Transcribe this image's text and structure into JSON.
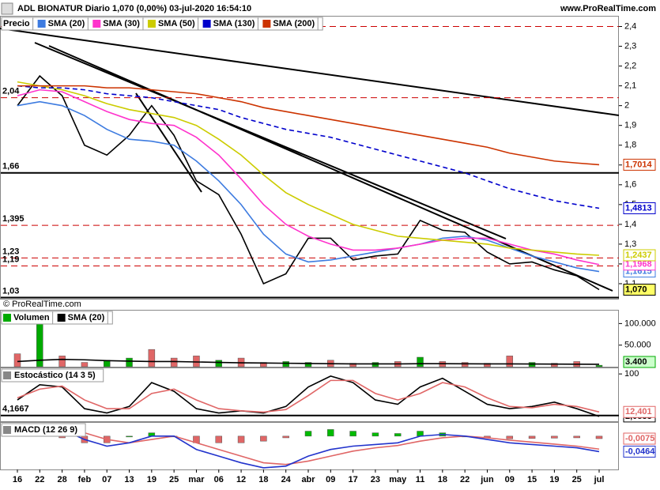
{
  "header": {
    "title": "ADL BIONATUR Diario 1,070 (0,00%) 03-jul-2020 16:54:10",
    "site": "www.ProRealTime.com",
    "copyright": "© ProRealTime.com"
  },
  "chart_data": [
    {
      "type": "line",
      "categories": [
        "16",
        "22",
        "28",
        "feb",
        "07",
        "13",
        "19",
        "25",
        "mar",
        "06",
        "12",
        "18",
        "24",
        "abr",
        "09",
        "17",
        "23",
        "may",
        "11",
        "18",
        "22",
        "jun",
        "09",
        "15",
        "19",
        "25",
        "jul"
      ],
      "ylim": [
        1.024,
        2.45
      ],
      "yticks": [
        {
          "value": 2.4,
          "label": "2,4"
        },
        {
          "value": 2.3,
          "label": "2,3"
        },
        {
          "value": 2.2,
          "label": "2,2"
        },
        {
          "value": 2.1,
          "label": "2,1"
        },
        2,
        {
          "value": 1.9,
          "label": "1,9"
        },
        {
          "value": 1.8,
          "label": "1,8"
        },
        {
          "value": 1.7,
          "label": "1,7"
        },
        {
          "value": 1.6,
          "label": "1,6"
        },
        {
          "value": 1.5,
          "label": "1,5"
        },
        {
          "value": 1.4,
          "label": "1,4"
        },
        {
          "value": 1.3,
          "label": "1,3"
        },
        {
          "value": 1.2,
          "label": "1,2"
        },
        {
          "value": 1.1,
          "label": "1,1"
        }
      ],
      "levels": [
        {
          "value": 2.4,
          "label": null,
          "color": "#cc0000",
          "dashed": true
        },
        {
          "value": 2.04,
          "label": "2,04",
          "color": "#cc0000",
          "dashed": true
        },
        {
          "value": 1.66,
          "label": "1,66",
          "color": "#000000",
          "dashed": false
        },
        {
          "value": 1.395,
          "label": "1,395",
          "color": "#cc0000",
          "dashed": true
        },
        {
          "value": 1.23,
          "label": "1,23",
          "color": "#cc0000",
          "dashed": true
        },
        {
          "value": 1.19,
          "label": "1,19",
          "color": "#cc0000",
          "dashed": true
        },
        {
          "value": 1.03,
          "label": "1,03",
          "color": "#000000",
          "dashed": false
        }
      ],
      "series": [
        {
          "name": "Precio",
          "color": "#000000",
          "tag_bg": "#ffff66",
          "values": [
            2.0,
            2.15,
            2.05,
            1.8,
            1.75,
            1.85,
            2.0,
            1.85,
            1.62,
            1.55,
            1.35,
            1.1,
            1.15,
            1.33,
            1.33,
            1.22,
            1.24,
            1.25,
            1.42,
            1.37,
            1.36,
            1.26,
            1.2,
            1.21,
            1.17,
            1.14,
            1.07
          ],
          "value_labels": [
            null,
            null,
            null,
            null,
            null,
            null,
            null,
            null,
            null,
            null,
            null,
            null,
            null,
            null,
            null,
            null,
            null,
            null,
            null,
            null,
            null,
            null,
            null,
            null,
            null,
            null,
            "1,070"
          ]
        },
        {
          "name": "SMA (20)",
          "color": "#3d7be0",
          "values": [
            2.0,
            2.02,
            2.0,
            1.95,
            1.88,
            1.83,
            1.82,
            1.8,
            1.72,
            1.62,
            1.5,
            1.35,
            1.25,
            1.21,
            1.22,
            1.24,
            1.26,
            1.28,
            1.3,
            1.33,
            1.34,
            1.32,
            1.28,
            1.24,
            1.21,
            1.18,
            1.1615
          ],
          "value_labels": [
            null,
            null,
            null,
            null,
            null,
            null,
            null,
            null,
            null,
            null,
            null,
            null,
            null,
            null,
            null,
            null,
            null,
            null,
            null,
            null,
            null,
            null,
            null,
            null,
            null,
            null,
            "1,1615"
          ]
        },
        {
          "name": "SMA (30)",
          "color": "#ff33cc",
          "values": [
            2.05,
            2.08,
            2.07,
            2.02,
            1.97,
            1.93,
            1.91,
            1.9,
            1.84,
            1.75,
            1.63,
            1.5,
            1.4,
            1.34,
            1.3,
            1.27,
            1.27,
            1.28,
            1.3,
            1.32,
            1.33,
            1.33,
            1.3,
            1.27,
            1.25,
            1.22,
            1.1968
          ],
          "value_labels": [
            null,
            null,
            null,
            null,
            null,
            null,
            null,
            null,
            null,
            null,
            null,
            null,
            null,
            null,
            null,
            null,
            null,
            null,
            null,
            null,
            null,
            null,
            null,
            null,
            null,
            null,
            "1,1968"
          ]
        },
        {
          "name": "SMA (50)",
          "color": "#cccc00",
          "values": [
            2.12,
            2.1,
            2.08,
            2.05,
            2.01,
            1.98,
            1.96,
            1.94,
            1.9,
            1.83,
            1.75,
            1.65,
            1.56,
            1.5,
            1.45,
            1.4,
            1.37,
            1.34,
            1.33,
            1.32,
            1.31,
            1.3,
            1.28,
            1.27,
            1.26,
            1.25,
            1.2437
          ],
          "value_labels": [
            null,
            null,
            null,
            null,
            null,
            null,
            null,
            null,
            null,
            null,
            null,
            null,
            null,
            null,
            null,
            null,
            null,
            null,
            null,
            null,
            null,
            null,
            null,
            null,
            null,
            null,
            "1,2437"
          ]
        },
        {
          "name": "SMA (130)",
          "color": "#0000cc",
          "dashed": true,
          "values": [
            2.1,
            2.09,
            2.09,
            2.08,
            2.06,
            2.05,
            2.04,
            2.02,
            2.0,
            1.98,
            1.94,
            1.91,
            1.88,
            1.86,
            1.84,
            1.81,
            1.78,
            1.75,
            1.72,
            1.69,
            1.66,
            1.62,
            1.58,
            1.55,
            1.52,
            1.5,
            1.4813
          ],
          "value_labels": [
            null,
            null,
            null,
            null,
            null,
            null,
            null,
            null,
            null,
            null,
            null,
            null,
            null,
            null,
            null,
            null,
            null,
            null,
            null,
            null,
            null,
            null,
            null,
            null,
            null,
            null,
            "1,4813"
          ]
        },
        {
          "name": "SMA (200)",
          "color": "#cc3300",
          "values": [
            2.1,
            2.1,
            2.1,
            2.1,
            2.09,
            2.09,
            2.08,
            2.07,
            2.06,
            2.04,
            2.02,
            1.99,
            1.97,
            1.95,
            1.93,
            1.91,
            1.89,
            1.87,
            1.85,
            1.83,
            1.81,
            1.79,
            1.76,
            1.74,
            1.72,
            1.71,
            1.7014
          ],
          "value_labels": [
            null,
            null,
            null,
            null,
            null,
            null,
            null,
            null,
            null,
            null,
            null,
            null,
            null,
            null,
            null,
            null,
            null,
            null,
            null,
            null,
            null,
            null,
            null,
            null,
            null,
            null,
            "1,7014"
          ]
        }
      ]
    },
    {
      "type": "bar",
      "ylim": [
        0,
        130000
      ],
      "yticks": [
        {
          "value": 100000,
          "label": "100.000"
        },
        {
          "value": 50000,
          "label": "50.000"
        }
      ],
      "series": [
        {
          "name": "Volumen",
          "kind": "bar",
          "color": "#00aa00",
          "tag_bg": "#ccffcc",
          "colors": [
            "#e06666",
            "#00aa00",
            "#e06666",
            "#e06666",
            "#00aa00",
            "#00aa00",
            "#e06666",
            "#e06666",
            "#e06666",
            "#00aa00",
            "#e06666",
            "#e06666",
            "#00aa00",
            "#00aa00",
            "#e06666",
            "#e06666",
            "#00aa00",
            "#e06666",
            "#00aa00",
            "#e06666",
            "#e06666",
            "#e06666",
            "#e06666",
            "#00aa00",
            "#e06666",
            "#e06666",
            "#00aa00"
          ],
          "values": [
            30000,
            125000,
            25000,
            10000,
            15000,
            20000,
            40000,
            20000,
            25000,
            15000,
            20000,
            10000,
            12000,
            10000,
            15000,
            8000,
            10000,
            12000,
            22000,
            12000,
            10000,
            8000,
            25000,
            10000,
            8000,
            12000,
            3400
          ],
          "value_labels": [
            null,
            null,
            null,
            null,
            null,
            null,
            null,
            null,
            null,
            null,
            null,
            null,
            null,
            null,
            null,
            null,
            null,
            null,
            null,
            null,
            null,
            null,
            null,
            null,
            null,
            null,
            "3.400"
          ]
        },
        {
          "name": "SMA (20)",
          "kind": "line",
          "color": "#000000",
          "values": [
            12000,
            15000,
            17000,
            16000,
            14000,
            13000,
            12000,
            12000,
            11000,
            10000,
            9000,
            8500,
            8000,
            7500,
            7000,
            6500,
            6500,
            6500,
            7000,
            7000,
            6800,
            6500,
            6500,
            6300,
            6000,
            5800,
            5600
          ]
        }
      ]
    },
    {
      "type": "line",
      "title": "Estocástico (14 3 5)",
      "ylim": [
        -9,
        113
      ],
      "yticks": [
        100
      ],
      "levels": [
        {
          "value": 4.1667,
          "label": "4,1667",
          "color": "#000000",
          "dashed": false
        }
      ],
      "series": [
        {
          "kind": "line",
          "color": "#000000",
          "values": [
            40,
            75,
            70,
            20,
            10,
            25,
            80,
            60,
            20,
            10,
            15,
            10,
            25,
            70,
            95,
            80,
            40,
            30,
            70,
            90,
            60,
            30,
            20,
            25,
            35,
            20,
            2.0833
          ],
          "value_labels": [
            null,
            null,
            null,
            null,
            null,
            null,
            null,
            null,
            null,
            null,
            null,
            null,
            null,
            null,
            null,
            null,
            null,
            null,
            null,
            null,
            null,
            null,
            null,
            null,
            null,
            null,
            "2,0833"
          ]
        },
        {
          "kind": "line",
          "color": "#e06666",
          "values": [
            45,
            65,
            72,
            40,
            20,
            20,
            55,
            65,
            40,
            20,
            15,
            12,
            18,
            50,
            85,
            85,
            55,
            40,
            55,
            80,
            70,
            45,
            25,
            22,
            30,
            25,
            12.401
          ],
          "value_labels": [
            null,
            null,
            null,
            null,
            null,
            null,
            null,
            null,
            null,
            null,
            null,
            null,
            null,
            null,
            null,
            null,
            null,
            null,
            null,
            null,
            null,
            null,
            null,
            null,
            null,
            null,
            "12,401"
          ]
        }
      ]
    },
    {
      "type": "line",
      "title": "MACD (12 26 9)",
      "ylim": [
        -0.1,
        0.04
      ],
      "series": [
        {
          "kind": "bar",
          "color": "#e06666",
          "colors_pos": "#00bb00",
          "values": [
            0.005,
            0.005,
            -0.005,
            -0.02,
            -0.02,
            0.0,
            0.01,
            0.0,
            -0.02,
            -0.02,
            -0.02,
            -0.015,
            -0.005,
            0.015,
            0.02,
            0.015,
            0.01,
            0.008,
            0.015,
            0.01,
            0.0,
            -0.005,
            -0.008,
            -0.007,
            -0.006,
            -0.005,
            -0.0075
          ],
          "value_labels": [
            null,
            null,
            null,
            null,
            null,
            null,
            null,
            null,
            null,
            null,
            null,
            null,
            null,
            null,
            null,
            null,
            null,
            null,
            null,
            null,
            null,
            null,
            null,
            null,
            null,
            null,
            "-0,0075"
          ]
        },
        {
          "kind": "line",
          "color": "#e06666",
          "values": [
            0.015,
            0.025,
            0.025,
            0.01,
            -0.01,
            -0.02,
            -0.01,
            0.0,
            -0.02,
            -0.04,
            -0.06,
            -0.08,
            -0.085,
            -0.075,
            -0.06,
            -0.045,
            -0.035,
            -0.028,
            -0.015,
            -0.005,
            0.0,
            -0.005,
            -0.012,
            -0.018,
            -0.024,
            -0.03,
            -0.0389
          ]
        },
        {
          "kind": "line",
          "color": "#2233cc",
          "values": [
            0.02,
            0.03,
            0.02,
            -0.01,
            -0.03,
            -0.02,
            0.0,
            0.0,
            -0.04,
            -0.06,
            -0.08,
            -0.095,
            -0.09,
            -0.06,
            -0.04,
            -0.03,
            -0.025,
            -0.02,
            0.0,
            0.005,
            0.0,
            -0.01,
            -0.02,
            -0.025,
            -0.03,
            -0.035,
            -0.0464
          ],
          "value_labels": [
            null,
            null,
            null,
            null,
            null,
            null,
            null,
            null,
            null,
            null,
            null,
            null,
            null,
            null,
            null,
            null,
            null,
            null,
            null,
            null,
            null,
            null,
            null,
            null,
            null,
            null,
            "-0,0464"
          ]
        }
      ]
    }
  ]
}
